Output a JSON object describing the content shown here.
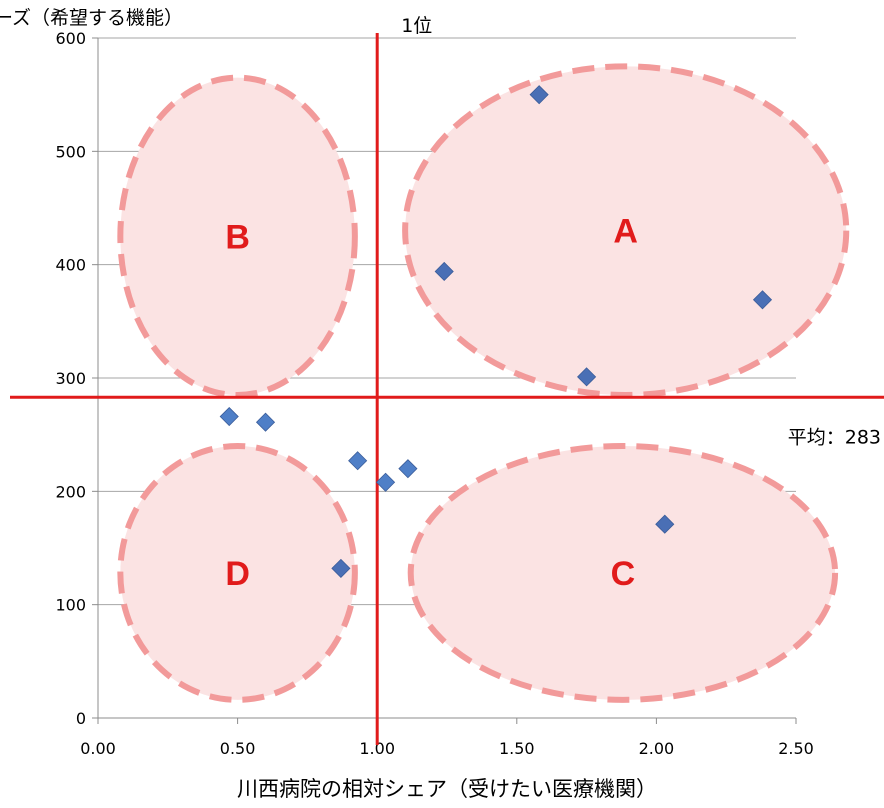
{
  "chart_data": {
    "type": "scatter",
    "title": "",
    "ylabel": "ーズ（希望する機能）",
    "xlabel": "川西病院の相対シェア（受けたい医療機関）",
    "xlim": [
      0,
      2.5
    ],
    "ylim": [
      0,
      600
    ],
    "x_ticks": [
      "0.00",
      "0.50",
      "1.00",
      "1.50",
      "2.00",
      "2.50"
    ],
    "y_ticks": [
      "0",
      "100",
      "200",
      "300",
      "400",
      "500",
      "600"
    ],
    "grid": "horizontal",
    "marker_colors": [
      "#4a6fb5",
      "#1f4e9c"
    ],
    "series": [
      {
        "points": [
          {
            "x": 1.58,
            "y": 550
          },
          {
            "x": 1.24,
            "y": 394
          },
          {
            "x": 2.38,
            "y": 369
          },
          {
            "x": 1.75,
            "y": 301
          },
          {
            "x": 0.47,
            "y": 266
          },
          {
            "x": 0.6,
            "y": 261
          },
          {
            "x": 0.93,
            "y": 227
          },
          {
            "x": 1.11,
            "y": 220
          },
          {
            "x": 1.03,
            "y": 208
          },
          {
            "x": 2.03,
            "y": 171
          },
          {
            "x": 0.87,
            "y": 132
          }
        ]
      }
    ],
    "reference_lines": [
      {
        "axis": "x",
        "value": 1.0,
        "label": "1位",
        "color": "#e11b1b"
      },
      {
        "axis": "y",
        "value": 283,
        "label": "平均：283",
        "color": "#e11b1b"
      }
    ],
    "zones": [
      {
        "label": "A",
        "center": [
          1.89,
          430
        ],
        "x_radius": 0.79,
        "y_radius": 145
      },
      {
        "label": "B",
        "center": [
          0.5,
          425
        ],
        "x_radius": 0.42,
        "y_radius": 140
      },
      {
        "label": "C",
        "center": [
          1.88,
          128
        ],
        "x_radius": 0.76,
        "y_radius": 112
      },
      {
        "label": "D",
        "center": [
          0.5,
          128
        ],
        "x_radius": 0.42,
        "y_radius": 112
      }
    ],
    "zone_style": {
      "fill": "#fbe3e3",
      "stroke": "#f29a9a"
    }
  }
}
